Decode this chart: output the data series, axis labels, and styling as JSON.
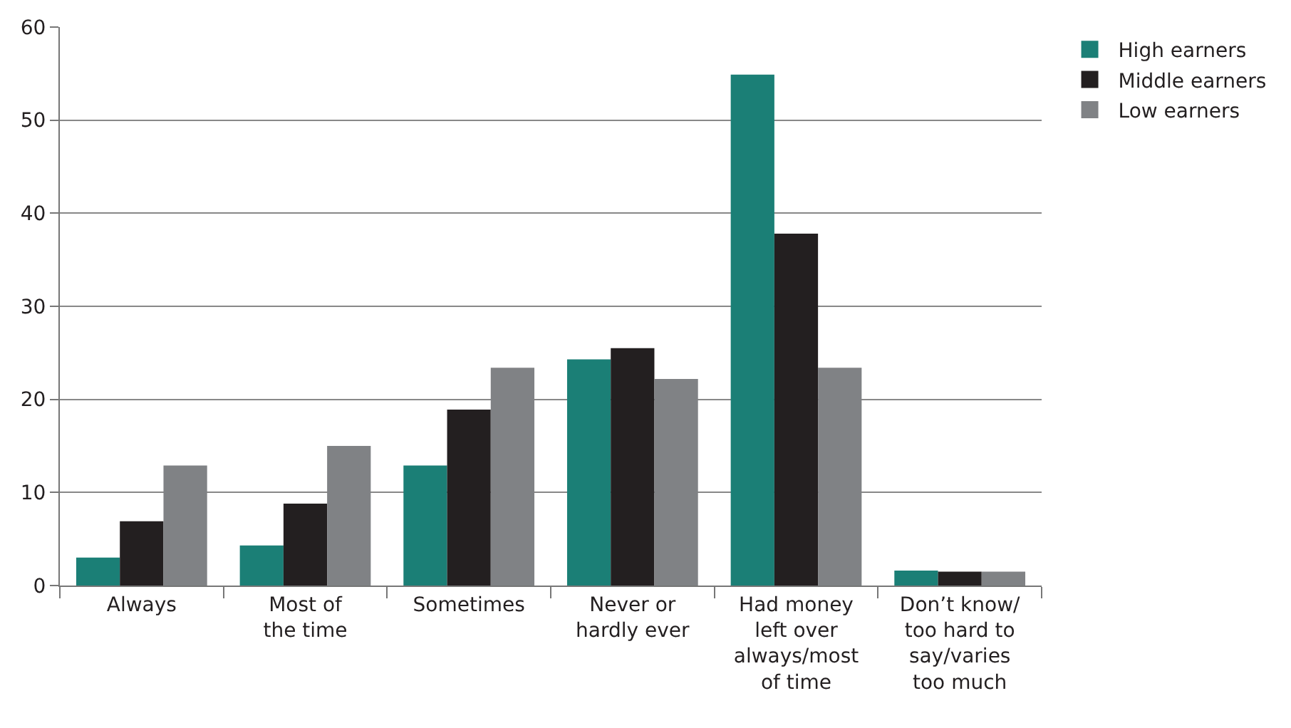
{
  "chart_data": {
    "type": "bar",
    "categories": [
      "Always",
      "Most of\nthe time",
      "Sometimes",
      "Never or\nhardly ever",
      "Had money\nleft over\nalways/most\nof time",
      "Don’t know/\ntoo hard to\nsay/varies\ntoo much"
    ],
    "series": [
      {
        "name": "High earners",
        "color": "#1b7f76",
        "values": [
          3.0,
          4.3,
          12.9,
          24.3,
          54.9,
          1.6
        ]
      },
      {
        "name": "Middle earners",
        "color": "#231f20",
        "values": [
          6.9,
          8.8,
          18.9,
          25.5,
          37.8,
          1.5
        ]
      },
      {
        "name": "Low earners",
        "color": "#808285",
        "values": [
          12.9,
          15.0,
          23.4,
          22.2,
          23.4,
          1.5
        ]
      }
    ],
    "ylim": [
      0,
      60
    ],
    "yticks": [
      0,
      10,
      20,
      30,
      40,
      50,
      60
    ],
    "grid": "y",
    "legend": "top right"
  }
}
